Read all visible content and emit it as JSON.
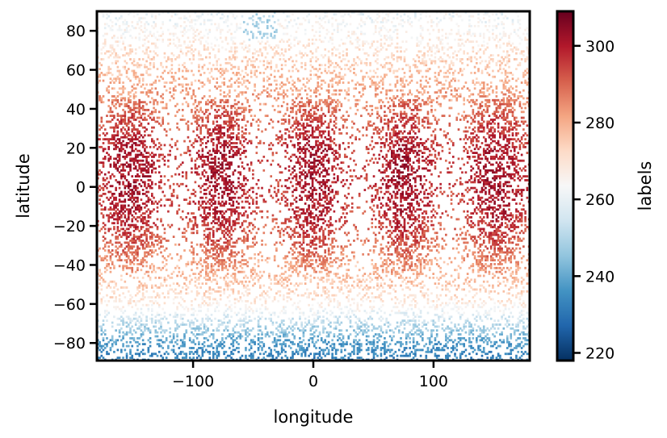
{
  "chart_data": {
    "type": "heatmap",
    "xlabel": "longitude",
    "ylabel": "latitude",
    "colorbar_label": "labels",
    "xlim": [
      -180,
      180
    ],
    "ylim": [
      -89,
      90
    ],
    "x_ticks": [
      -100,
      0,
      100
    ],
    "x_tick_labels": [
      "−100",
      "0",
      "100"
    ],
    "y_ticks": [
      -80,
      -60,
      -40,
      -20,
      0,
      20,
      40,
      60,
      80
    ],
    "y_tick_labels": [
      "−80",
      "−60",
      "−40",
      "−20",
      "0",
      "20",
      "40",
      "60",
      "80"
    ],
    "colorbar_range": [
      218,
      309
    ],
    "colorbar_ticks": [
      220,
      240,
      260,
      280,
      300
    ],
    "colorbar_tick_labels": [
      "220",
      "240",
      "260",
      "280",
      "300"
    ],
    "colormap": "RdBu_r",
    "colormap_stops": [
      "#053061",
      "#2166ac",
      "#4393c3",
      "#92c5de",
      "#d1e5f0",
      "#f7f7f7",
      "#fddbc7",
      "#f4a582",
      "#d6604d",
      "#b2182b",
      "#67001f"
    ],
    "value_profile_by_latitude": {
      "latitude": [
        -89,
        -80,
        -70,
        -60,
        -50,
        -40,
        -30,
        -20,
        -10,
        0,
        10,
        20,
        30,
        40,
        50,
        60,
        70,
        80,
        90
      ],
      "label": [
        232,
        238,
        252,
        268,
        276,
        282,
        289,
        294,
        297,
        298,
        298,
        297,
        293,
        287,
        281,
        276,
        270,
        264,
        260
      ]
    },
    "data_coverage": "sparse, scattered points",
    "grid": false,
    "legend": "colorbar at right"
  }
}
